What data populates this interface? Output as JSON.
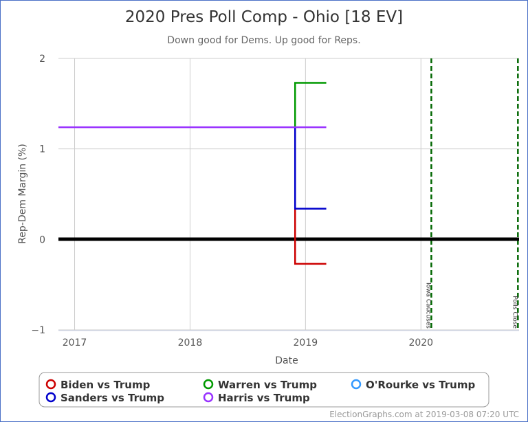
{
  "chart_data": {
    "type": "line",
    "title": "2020 Pres Poll Comp - Ohio [18 EV]",
    "subtitle": "Down good for Dems. Up good for Reps.",
    "xlabel": "Date",
    "ylabel": "Rep-Dem Margin (%)",
    "xlim": [
      2016.86,
      2020.85
    ],
    "ylim": [
      -1,
      2
    ],
    "x_ticks": [
      {
        "v": 2017,
        "label": "2017"
      },
      {
        "v": 2018,
        "label": "2018"
      },
      {
        "v": 2019,
        "label": "2019"
      },
      {
        "v": 2020,
        "label": "2020"
      }
    ],
    "y_ticks": [
      {
        "v": -1,
        "label": "−1"
      },
      {
        "v": 0,
        "label": "0"
      },
      {
        "v": 1,
        "label": "1"
      },
      {
        "v": 2,
        "label": "2"
      }
    ],
    "grid": true,
    "legend_placement": "bottom",
    "series": [
      {
        "name": "Biden vs Trump",
        "color": "#cc0000",
        "points": [
          [
            2018.91,
            1.24
          ],
          [
            2018.91,
            -0.27
          ],
          [
            2019.18,
            -0.27
          ]
        ]
      },
      {
        "name": "Warren vs Trump",
        "color": "#009900",
        "points": [
          [
            2018.91,
            1.24
          ],
          [
            2018.91,
            1.73
          ],
          [
            2019.18,
            1.73
          ]
        ]
      },
      {
        "name": "O'Rourke vs Trump",
        "color": "#3399ff",
        "points": []
      },
      {
        "name": "Sanders vs Trump",
        "color": "#0000cc",
        "points": [
          [
            2018.91,
            1.24
          ],
          [
            2018.91,
            0.34
          ],
          [
            2019.18,
            0.34
          ]
        ]
      },
      {
        "name": "Harris vs Trump",
        "color": "#9933ff",
        "points": [
          [
            2016.86,
            1.24
          ],
          [
            2019.18,
            1.24
          ]
        ]
      }
    ],
    "annotations": [
      {
        "x": 2020.09,
        "label": "Iowa Caucuses",
        "color": "#006600"
      },
      {
        "x": 2020.84,
        "label": "Polls Close",
        "color": "#006600"
      }
    ]
  },
  "credit": "ElectionGraphs.com at 2019-03-08 07:20 UTC"
}
